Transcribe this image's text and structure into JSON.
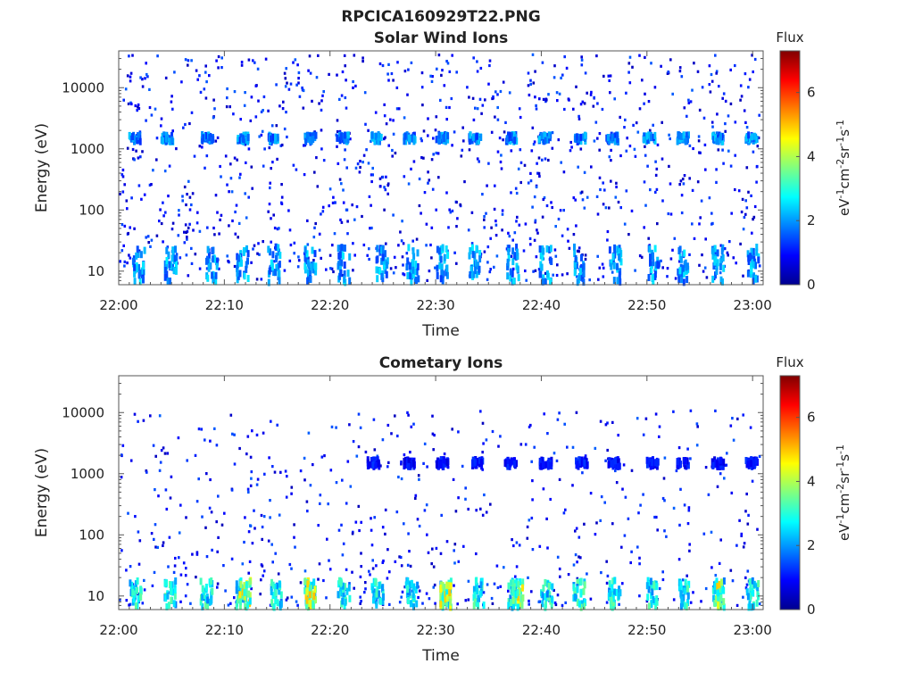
{
  "figure": {
    "title": "RPCICA160929T22.PNG"
  },
  "chart_data": [
    {
      "type": "heatmap",
      "title": "Solar Wind Ions",
      "xlabel": "Time",
      "ylabel": "Energy (eV)",
      "x_range": [
        "22:00",
        "23:01"
      ],
      "x_ticks": [
        "22:00",
        "22:10",
        "22:20",
        "22:30",
        "22:40",
        "22:50",
        "23:00"
      ],
      "ylim": [
        6,
        40000
      ],
      "y_scale": "log",
      "y_ticks": [
        10,
        100,
        1000,
        10000
      ],
      "colorbar": {
        "title": "Flux",
        "unit_label": "eV-1cm-2sr-1s-1",
        "range": [
          0,
          7.3
        ],
        "ticks": [
          0,
          2,
          4,
          6
        ],
        "colormap": "jet"
      },
      "bands": [
        {
          "energy_range": [
            1300,
            1700
          ],
          "minutes": [
            1.4,
            4.5,
            8.3,
            11.6,
            14.6,
            18.0,
            21.1,
            24.2,
            27.4,
            30.5,
            33.6,
            37.0,
            40.2,
            43.6,
            46.6,
            50.1,
            53.3,
            56.6,
            59.8
          ],
          "flux": 2.2
        },
        {
          "energy_range": [
            6.5,
            25
          ],
          "minutes": [
            1.8,
            4.8,
            8.7,
            11.6,
            14.6,
            18.0,
            21.2,
            24.8,
            27.7,
            30.5,
            33.6,
            37.2,
            40.3,
            43.4,
            46.9,
            50.5,
            53.3,
            56.6,
            59.9
          ],
          "flux": 2.4
        }
      ],
      "background": {
        "energy_range": [
          7,
          35000
        ],
        "flux_range": [
          0.4,
          1.6
        ],
        "description": "sparse low-flux counts across all energies"
      }
    },
    {
      "type": "heatmap",
      "title": "Cometary Ions",
      "xlabel": "Time",
      "ylabel": "Energy (eV)",
      "x_range": [
        "22:00",
        "23:01"
      ],
      "x_ticks": [
        "22:00",
        "22:10",
        "22:20",
        "22:30",
        "22:40",
        "22:50",
        "23:00"
      ],
      "ylim": [
        6,
        40000
      ],
      "y_scale": "log",
      "y_ticks": [
        10,
        100,
        1000,
        10000
      ],
      "colorbar": {
        "title": "Flux",
        "unit_label": "eV-1cm-2sr-1s-1",
        "range": [
          0,
          7.3
        ],
        "ticks": [
          0,
          2,
          4,
          6
        ],
        "colormap": "jet"
      },
      "bands": [
        {
          "energy_range": [
            1300,
            1700
          ],
          "minutes": [
            24.0,
            27.4,
            30.5,
            33.8,
            37.0,
            40.3,
            43.7,
            46.8,
            50.4,
            53.3,
            56.6,
            59.8
          ],
          "flux": 1.2
        },
        {
          "energy_range": [
            6.5,
            18
          ],
          "minutes": [
            1.5,
            4.8,
            8.2,
            11.5,
            14.8,
            18.0,
            21.2,
            24.4,
            27.6,
            30.9,
            34.0,
            37.3,
            40.4,
            43.5,
            46.8,
            50.3,
            53.4,
            56.7,
            59.9
          ],
          "flux": 3.2
        },
        {
          "energy_range": [
            6.5,
            18
          ],
          "minutes": [
            11.8,
            18.0,
            30.9,
            37.6,
            56.7
          ],
          "flux": 4.6
        }
      ],
      "background": {
        "energy_range": [
          7,
          11000
        ],
        "flux_range": [
          0.4,
          1.6
        ],
        "description": "sparse low-flux counts, denser below 200 eV"
      }
    }
  ]
}
